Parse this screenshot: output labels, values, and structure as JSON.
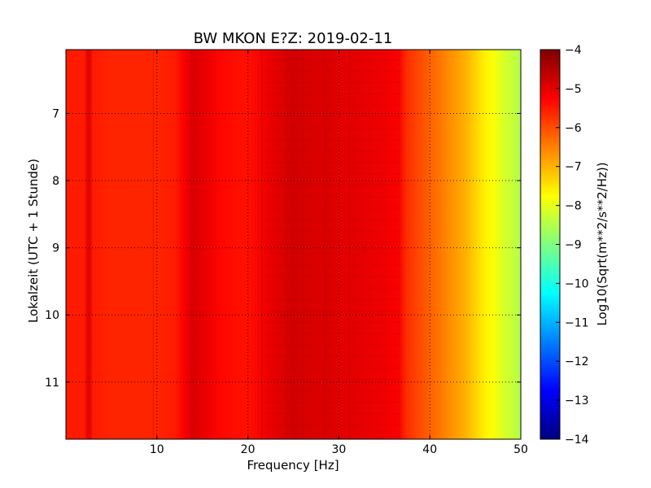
{
  "chart_data": {
    "type": "heatmap",
    "title": "BW MKON E?Z: 2019-02-11",
    "xlabel": "Frequency [Hz]",
    "ylabel": "Lokalzeit (UTC + 1 Stunde)",
    "colorbar_label": "Log10(Sqrt(m**2/s**2/Hz))",
    "xlim": [
      0,
      50
    ],
    "ylim": [
      11.85,
      6.05
    ],
    "x_ticks": [
      10,
      20,
      30,
      40,
      50
    ],
    "y_ticks": [
      7,
      8,
      9,
      10,
      11
    ],
    "grid": true,
    "colormap": "jet",
    "color_range": [
      -14,
      -4
    ],
    "colorbar_ticks": [
      -4,
      -5,
      -6,
      -7,
      -8,
      -9,
      -10,
      -11,
      -12,
      -13,
      -14
    ],
    "spectrum_profile": {
      "frequency_hz": [
        0,
        2,
        2.5,
        3,
        5,
        8,
        10,
        12,
        13,
        14,
        15,
        17,
        19,
        20,
        22,
        24,
        25,
        27,
        29,
        30,
        32,
        35,
        36.5,
        37.5,
        38.5,
        40,
        41,
        42,
        43,
        44,
        45,
        46,
        47,
        48,
        49,
        50
      ],
      "log10_amplitude": [
        -5.5,
        -5.5,
        -5.0,
        -5.5,
        -5.6,
        -5.6,
        -5.6,
        -5.5,
        -5.2,
        -4.9,
        -5.0,
        -5.3,
        -5.4,
        -5.4,
        -5.1,
        -4.9,
        -4.8,
        -4.9,
        -4.9,
        -5.0,
        -5.0,
        -5.1,
        -5.2,
        -5.7,
        -5.9,
        -6.2,
        -6.4,
        -6.6,
        -6.8,
        -7.0,
        -7.3,
        -7.6,
        -7.8,
        -8.1,
        -8.3,
        -8.5
      ]
    }
  }
}
